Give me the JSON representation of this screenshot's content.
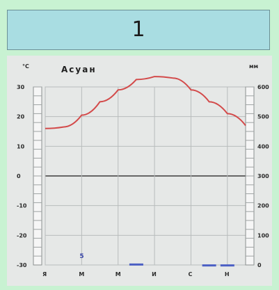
{
  "header": {
    "number": "1"
  },
  "chart_data": {
    "type": "line",
    "title": "Асуан",
    "left_unit": "°C",
    "right_unit": "мм",
    "left_ticks": [
      "-30",
      "-20",
      "-10",
      "0",
      "10",
      "20",
      "30"
    ],
    "right_ticks": [
      "0",
      "100",
      "200",
      "300",
      "400",
      "500",
      "600"
    ],
    "months": [
      "Я",
      "М",
      "М",
      "И",
      "С",
      "Н"
    ],
    "grid": true,
    "temperature": {
      "x": [
        1,
        2,
        3,
        4,
        5,
        6,
        7,
        8,
        9,
        10,
        11,
        12
      ],
      "y": [
        16,
        16.5,
        20.5,
        25,
        29,
        32.5,
        33.5,
        33,
        29,
        25,
        21,
        17
      ]
    },
    "precipitation": {
      "x": [
        1,
        2,
        3,
        4,
        5,
        6,
        7,
        8,
        9,
        10,
        11,
        12
      ],
      "y": [
        0,
        0,
        0,
        0,
        0,
        5,
        0,
        0,
        0,
        2,
        2,
        0
      ],
      "labels": [
        {
          "month": "М",
          "text": "5"
        }
      ]
    },
    "ylim_left": [
      -30,
      30
    ],
    "ylim_right": [
      0,
      600
    ],
    "colors": {
      "temperature_line": "#d34a4a",
      "precipitation": "#4b5fc4",
      "zero_line": "#666666",
      "grid": "#b8bcbc"
    }
  }
}
